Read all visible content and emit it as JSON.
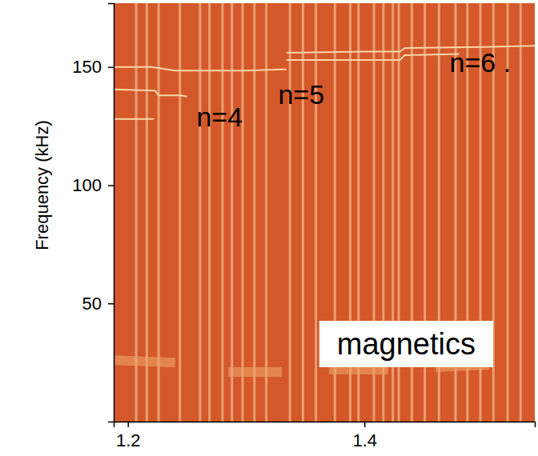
{
  "chart_data": {
    "type": "spectrogram",
    "y_label": "Frequency (kHz)",
    "xlim": [
      1.188,
      1.544
    ],
    "ylim": [
      0,
      177
    ],
    "xticks": [
      1.2,
      1.4
    ],
    "yticks": [
      50,
      100,
      150
    ],
    "color": "#d4582a",
    "events": [
      1.207,
      1.216,
      1.226,
      1.244,
      1.261,
      1.269,
      1.28,
      1.288,
      1.297,
      1.307,
      1.317,
      1.337,
      1.348,
      1.359,
      1.375,
      1.388,
      1.395,
      1.408,
      1.416,
      1.424,
      1.429,
      1.44,
      1.451,
      1.463,
      1.477,
      1.487,
      1.498,
      1.509,
      1.521,
      1.532
    ],
    "series": [
      {
        "color": "#f7d6a8",
        "line_style": "solid",
        "x": [
          1.188,
          1.223,
          1.226,
          1.245,
          1.25
        ],
        "values": [
          140.5,
          140,
          138,
          138,
          137.5
        ]
      },
      {
        "color": "#f7d6a8",
        "line_style": "solid",
        "x": [
          1.188,
          1.222
        ],
        "values": [
          128,
          128
        ]
      },
      {
        "color": "#f7d6a8",
        "line_style": "solid",
        "x": [
          1.188,
          1.22,
          1.24,
          1.3,
          1.33,
          1.334
        ],
        "values": [
          150,
          150,
          148.5,
          148.5,
          149,
          149
        ]
      },
      {
        "color": "#f7d6a8",
        "line_style": "solid",
        "x": [
          1.334,
          1.4,
          1.43,
          1.434,
          1.5,
          1.544
        ],
        "values": [
          156,
          156.5,
          156.5,
          158,
          158.5,
          159
        ]
      },
      {
        "color": "#f7d6a8",
        "line_style": "solid",
        "x": [
          1.334,
          1.4,
          1.43,
          1.434,
          1.48
        ],
        "values": [
          153,
          153,
          153,
          155,
          155.5
        ]
      },
      {
        "color": "#eea36a",
        "line_style": "broad",
        "x": [
          1.188,
          1.24
        ],
        "values": [
          26,
          25
        ]
      },
      {
        "color": "#eea36a",
        "line_style": "broad",
        "x": [
          1.285,
          1.33
        ],
        "values": [
          21,
          21
        ]
      },
      {
        "color": "#eea36a",
        "line_style": "broad",
        "x": [
          1.37,
          1.42
        ],
        "values": [
          22,
          22
        ]
      },
      {
        "color": "#eea36a",
        "line_style": "broad",
        "x": [
          1.46,
          1.505
        ],
        "values": [
          23,
          24
        ]
      }
    ],
    "annotations": [
      {
        "text": "n=4",
        "x": 1.258,
        "y": 125
      },
      {
        "text": "n=5",
        "x": 1.327,
        "y": 134.5
      },
      {
        "text": "n=6 .",
        "x": 1.472,
        "y": 148
      }
    ],
    "panel_label": "magnetics"
  }
}
